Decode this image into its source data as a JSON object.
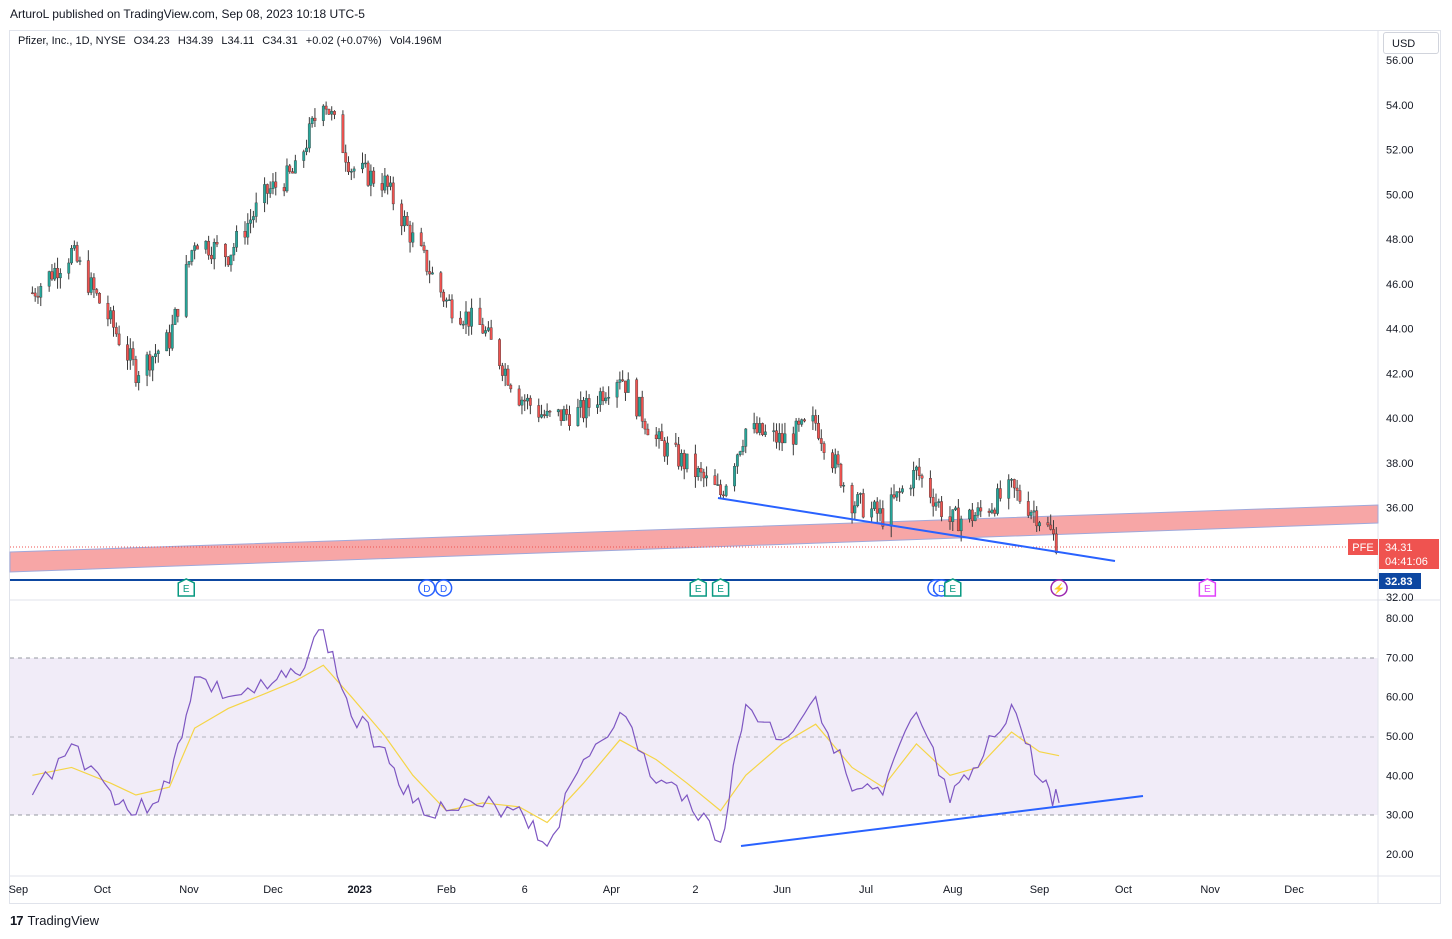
{
  "header": {
    "publisher": "ArturoL published on TradingView.com, Sep 08, 2023 10:18 UTC-5"
  },
  "legend": {
    "symbol": "Pfizer, Inc., 1D, NYSE",
    "open": "O34.23",
    "high": "H34.39",
    "low": "L34.11",
    "close": "C34.31",
    "change": "+0.02 (+0.07%)",
    "volume": "Vol4.196M"
  },
  "currency_button": "USD",
  "footer": {
    "brand": "TradingView",
    "logo": "17"
  },
  "price_tags": {
    "ticker": "PFE",
    "price": "34.31",
    "countdown": "04:41:06",
    "level": "32.83"
  },
  "colors": {
    "up": "#26a69a",
    "down": "#ef5350",
    "trendline": "#2962ff",
    "zone": "#f7a6a6",
    "rsi": "#7e57c2",
    "rsi_ma": "#f5d547"
  },
  "events": [
    {
      "label": "E",
      "color": "#089981",
      "type": "earnings"
    },
    {
      "label": "D",
      "color": "#2962ff",
      "type": "dividend"
    },
    {
      "label": "D",
      "color": "#2962ff",
      "type": "dividend"
    },
    {
      "label": "E",
      "color": "#089981",
      "type": "earnings"
    },
    {
      "label": "E",
      "color": "#089981",
      "type": "earnings"
    },
    {
      "label": "D",
      "color": "#2962ff",
      "type": "dividend"
    },
    {
      "label": "D",
      "color": "#2962ff",
      "type": "dividend"
    },
    {
      "label": "E",
      "color": "#089981",
      "type": "earnings"
    },
    {
      "label": "⚡",
      "color": "#9c27b0",
      "type": "split"
    },
    {
      "label": "E",
      "color": "#e040fb",
      "type": "earnings-upcoming"
    }
  ],
  "chart_data": [
    {
      "type": "candlestick",
      "ylim": [
        32.0,
        56.0
      ],
      "y_ticks": [
        "32.00",
        "34.00",
        "36.00",
        "38.00",
        "40.00",
        "42.00",
        "44.00",
        "46.00",
        "48.00",
        "50.00",
        "52.00",
        "54.00",
        "56.00"
      ],
      "x_ticks": [
        "Sep",
        "Oct",
        "Nov",
        "Dec",
        "2023",
        "Feb",
        "6",
        "Apr",
        "2",
        "Jun",
        "Jul",
        "Aug",
        "Sep",
        "Oct",
        "Nov",
        "Dec"
      ],
      "x": [
        "2022-09-06",
        "2022-09-20",
        "2022-10-04",
        "2022-10-13",
        "2022-10-25",
        "2022-11-03",
        "2022-11-15",
        "2022-11-29",
        "2022-12-09",
        "2022-12-19",
        "2022-12-29",
        "2023-01-10",
        "2023-01-20",
        "2023-02-01",
        "2023-02-14",
        "2023-02-27",
        "2023-03-09",
        "2023-03-22",
        "2023-04-04",
        "2023-04-17",
        "2023-04-28",
        "2023-05-10",
        "2023-05-19",
        "2023-06-01",
        "2023-06-13",
        "2023-06-26",
        "2023-07-07",
        "2023-07-19",
        "2023-07-31",
        "2023-08-10",
        "2023-08-22",
        "2023-09-01",
        "2023-09-08"
      ],
      "series": [
        {
          "name": "PFE",
          "close": [
            45.6,
            47.4,
            44.3,
            42.1,
            43.5,
            48.0,
            47.3,
            50.1,
            51.0,
            54.4,
            51.2,
            50.5,
            48.0,
            45.2,
            44.0,
            41.0,
            40.0,
            40.3,
            42.0,
            39.0,
            37.9,
            36.6,
            39.5,
            39.0,
            39.8,
            36.3,
            35.6,
            37.6,
            35.4,
            35.7,
            36.8,
            35.6,
            34.31
          ]
        }
      ]
    },
    {
      "type": "line",
      "name": "RSI",
      "ylim": [
        15,
        85
      ],
      "y_ticks": [
        "20.00",
        "30.00",
        "40.00",
        "50.00",
        "60.00",
        "70.00",
        "80.00"
      ],
      "x": [
        "2022-09-06",
        "2022-09-20",
        "2022-10-04",
        "2022-10-13",
        "2022-10-25",
        "2022-11-03",
        "2022-11-15",
        "2022-11-29",
        "2022-12-09",
        "2022-12-19",
        "2022-12-29",
        "2023-01-10",
        "2023-01-20",
        "2023-02-01",
        "2023-02-14",
        "2023-02-27",
        "2023-03-09",
        "2023-03-22",
        "2023-04-04",
        "2023-04-17",
        "2023-04-28",
        "2023-05-10",
        "2023-05-19",
        "2023-06-01",
        "2023-06-13",
        "2023-06-26",
        "2023-07-07",
        "2023-07-19",
        "2023-07-31",
        "2023-08-10",
        "2023-08-22",
        "2023-09-01",
        "2023-09-08"
      ],
      "series": [
        {
          "values": [
            35,
            48,
            36,
            30,
            38,
            65,
            60,
            62,
            66,
            77,
            55,
            47,
            33,
            31,
            32,
            32,
            22,
            44,
            56,
            38,
            35,
            23,
            58,
            49,
            60,
            36,
            35,
            56,
            33,
            42,
            58,
            39,
            33
          ]
        },
        {
          "values": [
            40,
            42,
            38,
            35,
            37,
            52,
            57,
            61,
            64,
            68,
            60,
            50,
            40,
            31,
            33,
            32,
            28,
            38,
            49,
            44,
            38,
            31,
            40,
            48,
            53,
            42,
            37,
            48,
            40,
            42,
            51,
            46,
            45
          ]
        }
      ]
    }
  ]
}
